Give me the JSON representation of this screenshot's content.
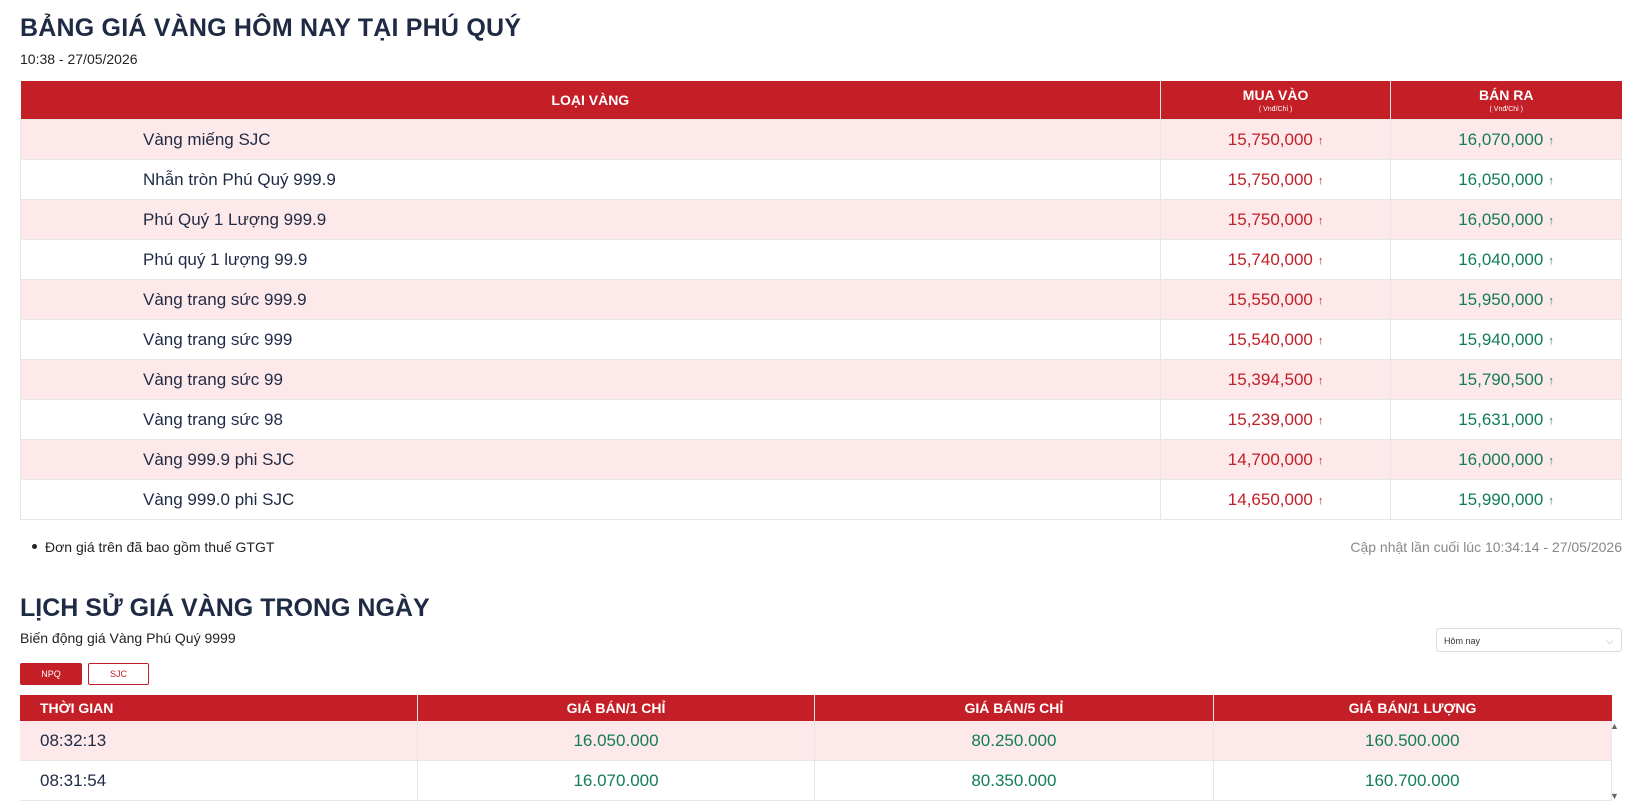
{
  "header": {
    "title": "BẢNG GIÁ VÀNG HÔM NAY TẠI PHÚ QUÝ",
    "time": "10:38 - 27/05/2026"
  },
  "price_table": {
    "col_type": "LOẠI VÀNG",
    "col_buy": "MUA VÀO",
    "col_sell": "BÁN RA",
    "unit": "( Vnđ/Chỉ )",
    "arrow": "↑",
    "rows": [
      {
        "name": "Vàng miếng SJC",
        "buy": "15,750,000",
        "sell": "16,070,000"
      },
      {
        "name": "Nhẫn tròn Phú Quý 999.9",
        "buy": "15,750,000",
        "sell": "16,050,000"
      },
      {
        "name": "Phú Quý 1 Lượng 999.9",
        "buy": "15,750,000",
        "sell": "16,050,000"
      },
      {
        "name": "Phú quý 1 lượng 99.9",
        "buy": "15,740,000",
        "sell": "16,040,000"
      },
      {
        "name": "Vàng trang sức 999.9",
        "buy": "15,550,000",
        "sell": "15,950,000"
      },
      {
        "name": "Vàng trang sức 999",
        "buy": "15,540,000",
        "sell": "15,940,000"
      },
      {
        "name": "Vàng trang sức 99",
        "buy": "15,394,500",
        "sell": "15,790,500"
      },
      {
        "name": "Vàng trang sức 98",
        "buy": "15,239,000",
        "sell": "15,631,000"
      },
      {
        "name": "Vàng 999.9 phi SJC",
        "buy": "14,700,000",
        "sell": "16,000,000"
      },
      {
        "name": "Vàng 999.0 phi SJC",
        "buy": "14,650,000",
        "sell": "15,990,000"
      }
    ]
  },
  "note": "Đơn giá trên đã bao gồm thuế GTGT",
  "updated": "Cập nhật lần cuối lúc 10:34:14 - 27/05/2026",
  "history": {
    "title": "LỊCH SỬ GIÁ VÀNG TRONG NGÀY",
    "subtitle": "Biến động giá Vàng Phú Quý 9999",
    "select_value": "Hôm nay",
    "tabs": [
      "NPQ",
      "SJC"
    ],
    "columns": [
      "THỜI GIAN",
      "GIÁ BÁN/1 CHỈ",
      "GIÁ BÁN/5 CHỈ",
      "GIÁ BÁN/1 LƯỢNG"
    ],
    "rows": [
      [
        "08:32:13",
        "16.050.000",
        "80.250.000",
        "160.500.000"
      ],
      [
        "08:31:54",
        "16.070.000",
        "80.350.000",
        "160.700.000"
      ]
    ]
  },
  "colors": {
    "brand_red": "#c41e26",
    "price_green": "#137c5a",
    "row_pink": "#fde8ea"
  },
  "icons": {
    "up_arrow": "up-arrow-icon",
    "chevron": "chevron-down-icon"
  }
}
